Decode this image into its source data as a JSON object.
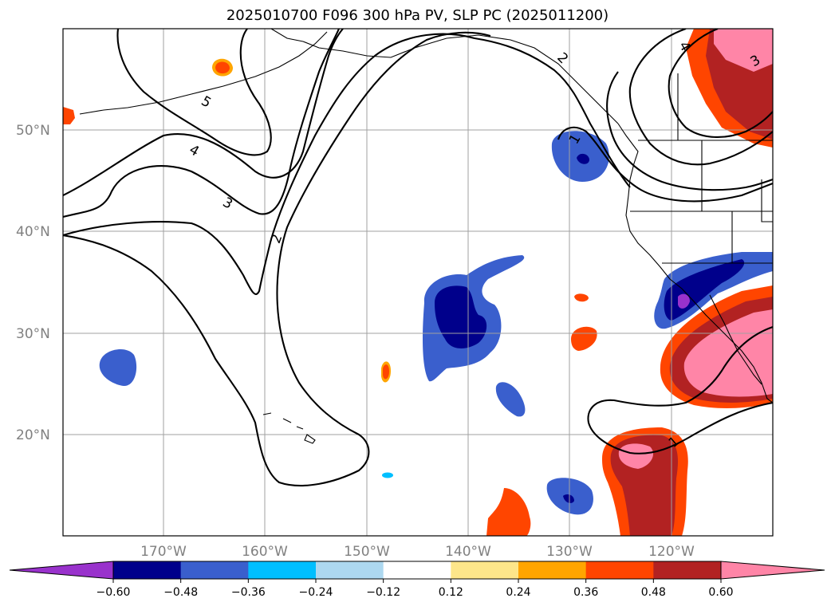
{
  "title": "2025010700 F096 300 hPa PV, SLP PC (2025011200)",
  "lat_labels": [
    "50°N",
    "40°N",
    "30°N",
    "20°N"
  ],
  "lon_labels": [
    "170°W",
    "160°W",
    "150°W",
    "140°W",
    "130°W",
    "120°W"
  ],
  "colorbar": {
    "ticks": [
      "−0.60",
      "−0.48",
      "−0.36",
      "−0.24",
      "−0.12",
      "0.12",
      "0.24",
      "0.36",
      "0.48",
      "0.60"
    ],
    "colors": [
      "#9932cc",
      "#00008b",
      "#3a5fcd",
      "#00bfff",
      "#add8f0",
      "#ffffff",
      "#fde68a",
      "#ffa500",
      "#ff4500",
      "#b22222",
      "#ff85a7"
    ]
  },
  "contour_labels": [
    "5",
    "4",
    "3",
    "2",
    "2",
    "1",
    "1",
    "3",
    "4"
  ]
}
